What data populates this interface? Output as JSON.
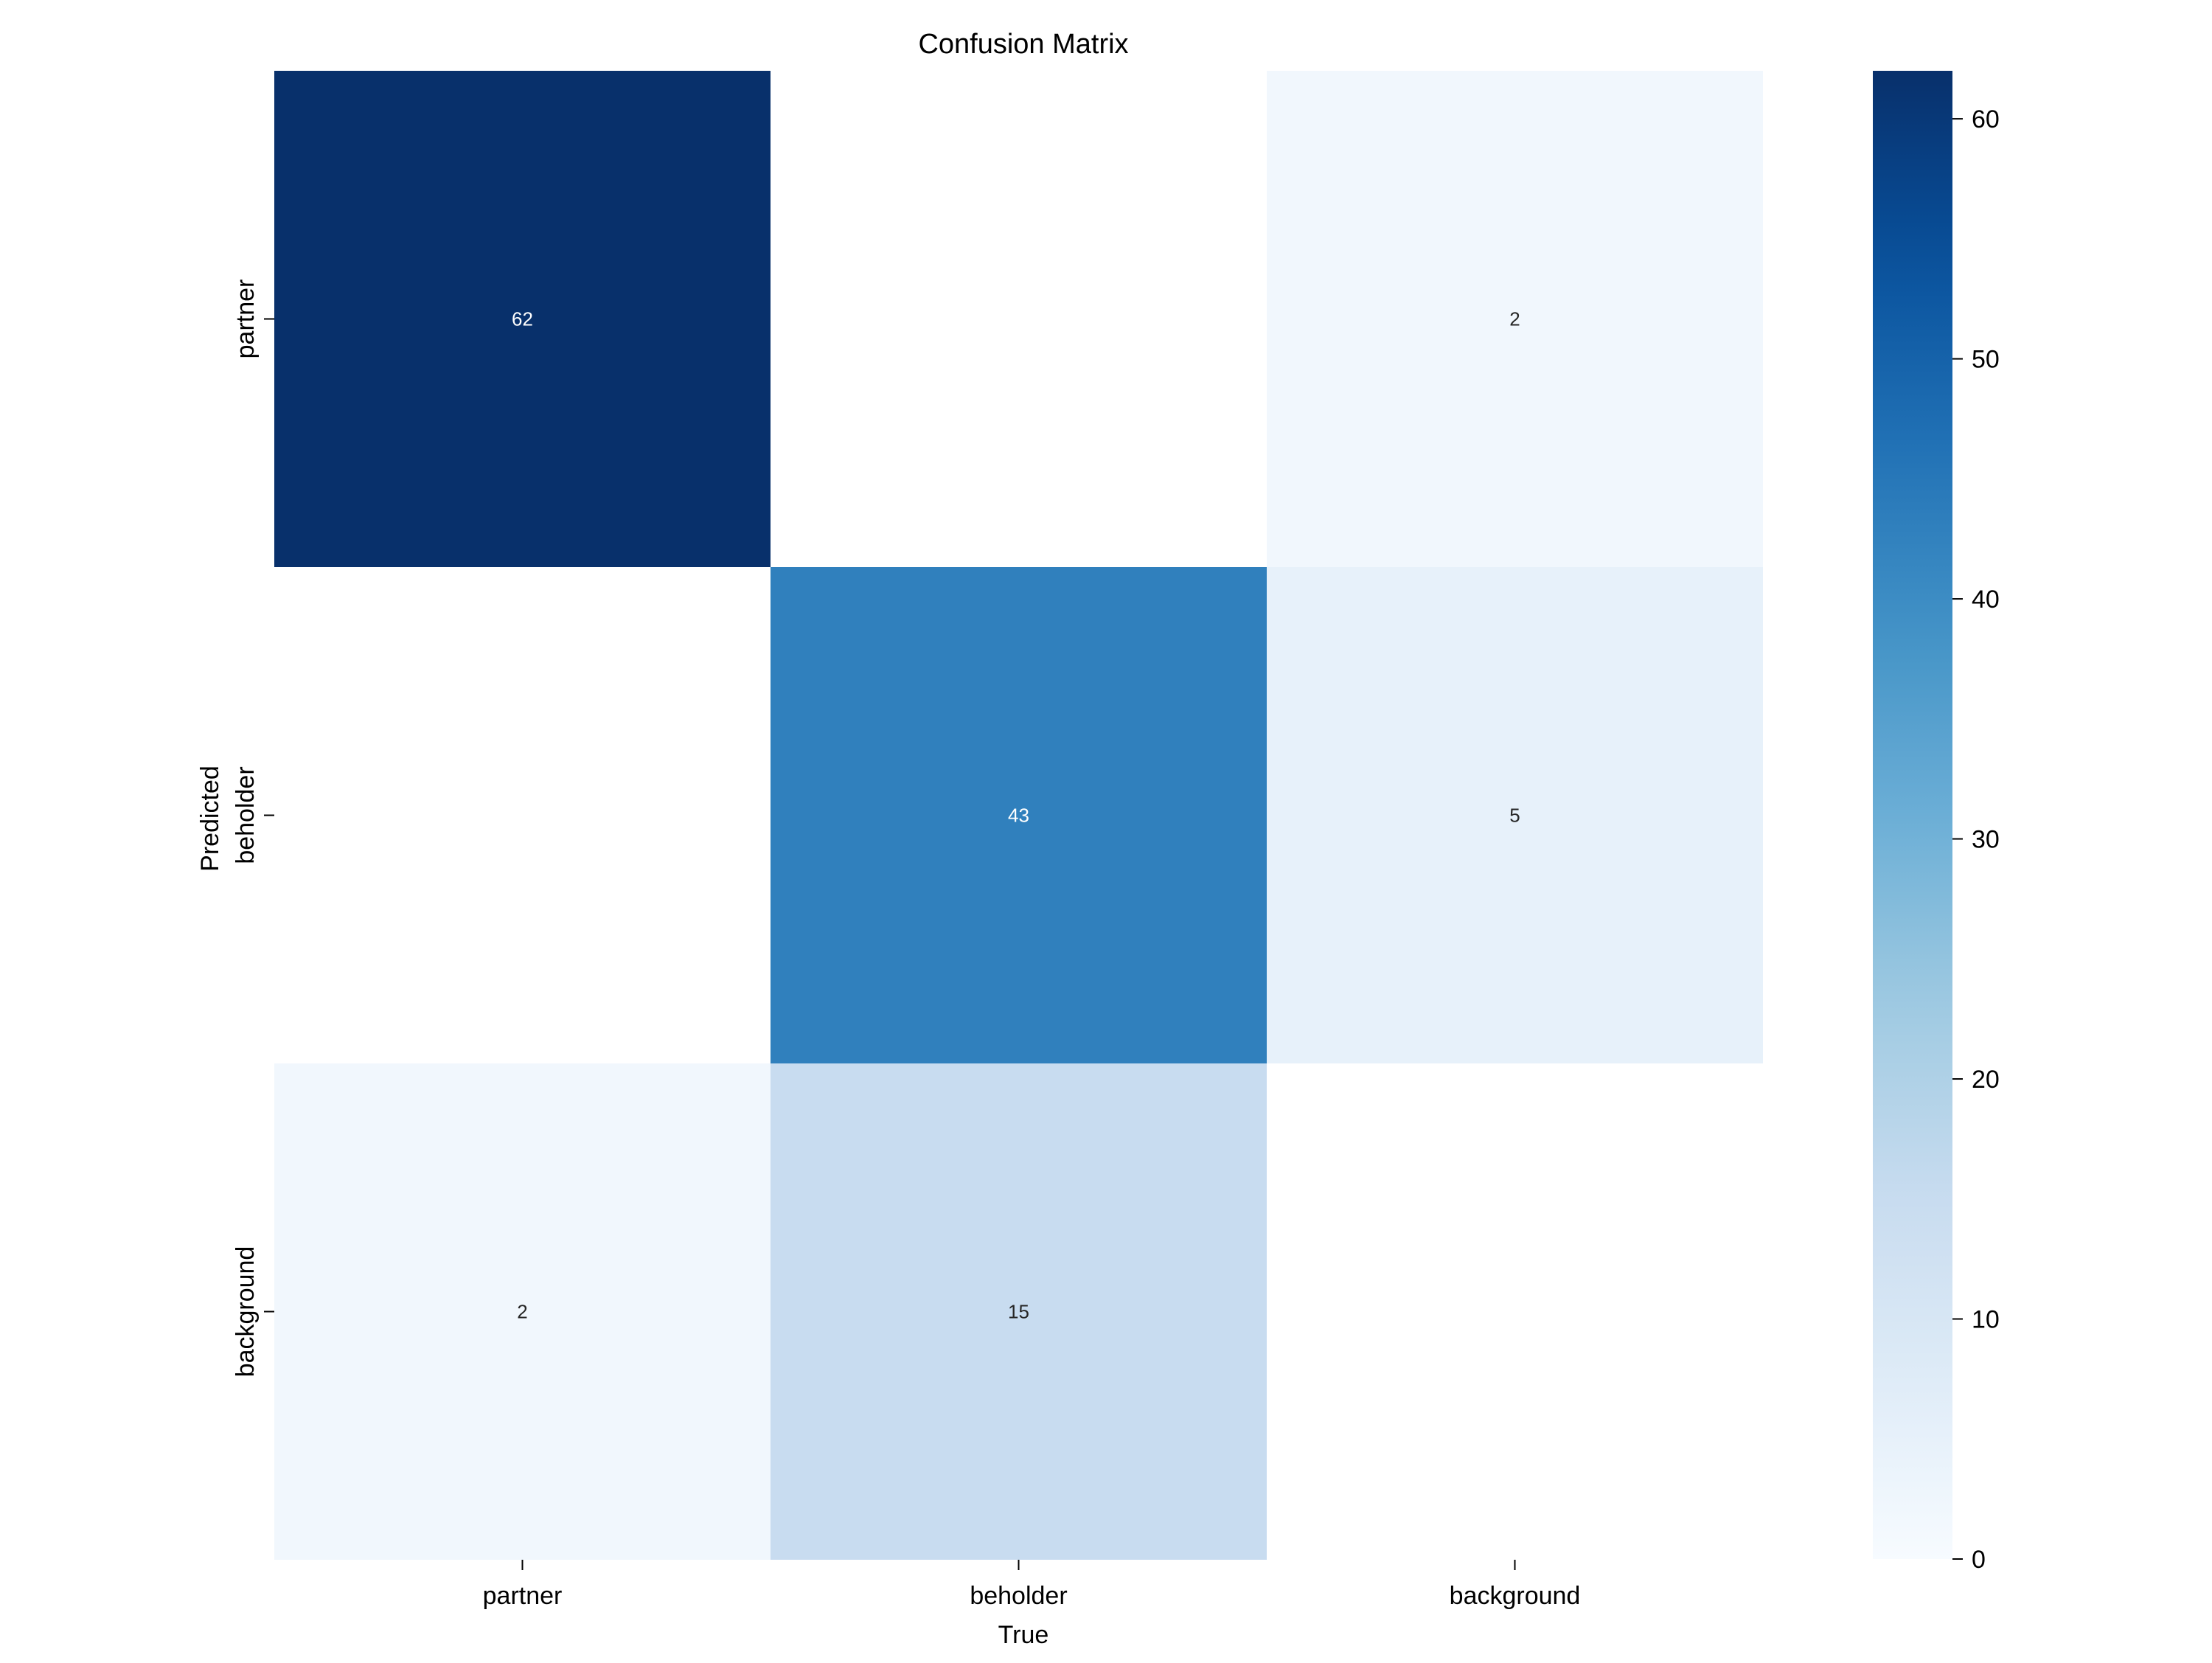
{
  "chart_data": {
    "type": "heatmap",
    "title": "Confusion Matrix",
    "xlabel": "True",
    "ylabel": "Predicted",
    "x_categories": [
      "partner",
      "beholder",
      "background"
    ],
    "y_categories": [
      "partner",
      "beholder",
      "background"
    ],
    "values": [
      [
        62,
        0,
        2
      ],
      [
        0,
        43,
        5
      ],
      [
        2,
        15,
        0
      ]
    ],
    "colorbar": {
      "range": [
        0,
        62
      ],
      "ticks": [
        0,
        10,
        20,
        30,
        40,
        50,
        60
      ],
      "colormap": "Blues"
    },
    "grid": false,
    "show_zero_annotations": false
  }
}
